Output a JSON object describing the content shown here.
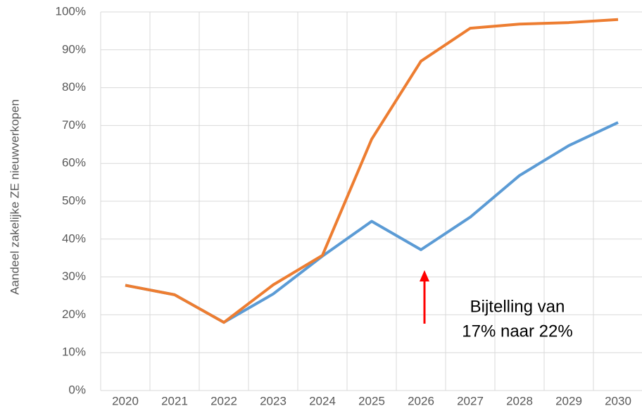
{
  "chart_data": {
    "type": "line",
    "y_label": "Aandeel zakelijke ZE nieuwverkopen",
    "categories": [
      "2020",
      "2021",
      "2022",
      "2023",
      "2024",
      "2025",
      "2026",
      "2027",
      "2028",
      "2029",
      "2030"
    ],
    "series": [
      {
        "color": "#5b9bd5",
        "values": [
          27.8,
          25.3,
          18,
          25.5,
          35.5,
          44.7,
          37.2,
          45.8,
          56.8,
          64.7,
          70.8
        ]
      },
      {
        "color": "#ed7d31",
        "values": [
          27.8,
          25.3,
          18,
          27.9,
          35.7,
          66.4,
          87,
          95.7,
          96.8,
          97.2,
          98
        ]
      }
    ],
    "ylim": [
      0,
      100
    ],
    "yticks": [
      {
        "value": 0,
        "label": "0%"
      },
      {
        "value": 10,
        "label": "10%"
      },
      {
        "value": 20,
        "label": "20%"
      },
      {
        "value": 30,
        "label": "30%"
      },
      {
        "value": 40,
        "label": "40%"
      },
      {
        "value": 50,
        "label": "50%"
      },
      {
        "value": 60,
        "label": "60%"
      },
      {
        "value": 70,
        "label": "70%"
      },
      {
        "value": 80,
        "label": "80%"
      },
      {
        "value": 90,
        "label": "90%"
      },
      {
        "value": 100,
        "label": "100%"
      }
    ],
    "grid": true,
    "annotation": [
      "Bijtelling van",
      "17% naar 22%"
    ]
  }
}
